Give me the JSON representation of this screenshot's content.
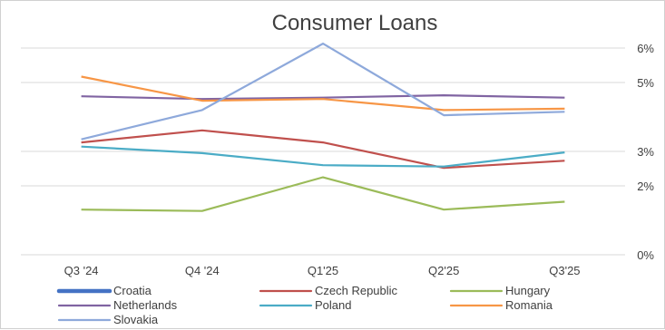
{
  "chart_data": {
    "type": "line",
    "title": "Consumer Loans",
    "xlabel": "",
    "ylabel": "",
    "categories": [
      "Q3 '24",
      "Q4 '24",
      "Q1'25",
      "Q2'25",
      "Q3'25"
    ],
    "y_axis_position": "right",
    "ylim": [
      0,
      6
    ],
    "yticks": [
      0,
      2,
      3,
      5,
      6
    ],
    "ytick_labels": [
      "0%",
      "2%",
      "3%",
      "5%",
      "6%"
    ],
    "grid": true,
    "legend_position": "bottom",
    "series": [
      {
        "name": "Croatia",
        "color": "#4472C4",
        "values": [
          null,
          null,
          null,
          null,
          null
        ]
      },
      {
        "name": "Czech Republic",
        "color": "#C0504D",
        "values": [
          3.26,
          3.61,
          3.26,
          2.52,
          2.73
        ]
      },
      {
        "name": "Hungary",
        "color": "#9BBB59",
        "values": [
          1.31,
          1.27,
          2.25,
          1.31,
          1.54
        ]
      },
      {
        "name": "Netherlands",
        "color": "#8064A2",
        "values": [
          4.6,
          4.52,
          4.56,
          4.63,
          4.56
        ]
      },
      {
        "name": "Poland",
        "color": "#4BACC6",
        "values": [
          3.14,
          2.95,
          2.6,
          2.56,
          2.97
        ]
      },
      {
        "name": "Romania",
        "color": "#F79646",
        "values": [
          5.17,
          4.47,
          4.52,
          4.2,
          4.24
        ]
      },
      {
        "name": "Slovakia",
        "color": "#8EA9DB",
        "values": [
          3.35,
          4.2,
          6.13,
          4.05,
          4.15
        ]
      }
    ]
  }
}
